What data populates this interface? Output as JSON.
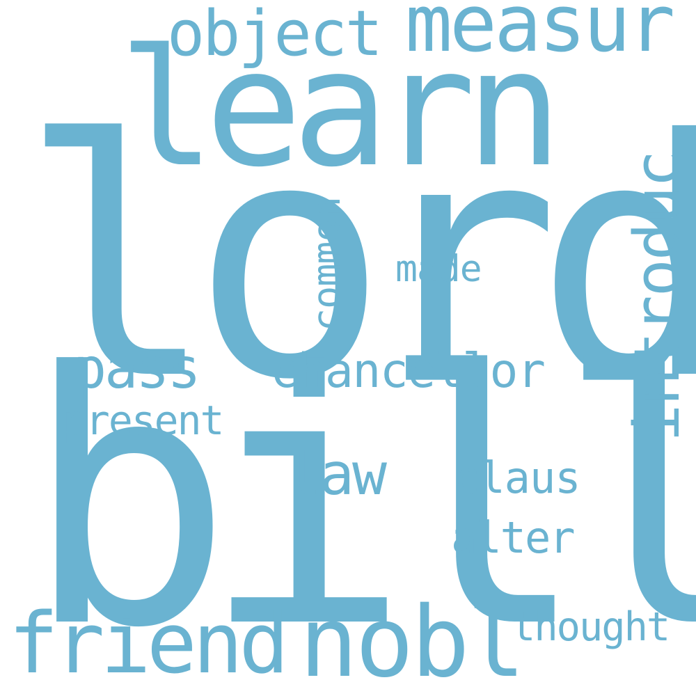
{
  "word_cloud": {
    "color": "#6ab3d1",
    "background": "#ffffff",
    "words": {
      "lord": "lord",
      "bill": "bill",
      "learn": "learn",
      "measur": "measur",
      "object": "object",
      "friend": "friend",
      "nobl": "nobl",
      "introduc": "introduc",
      "pass": "pass",
      "chancellor": "chancellor",
      "common": "common",
      "made": "made",
      "present": "present",
      "law": "law",
      "claus": "claus",
      "alter": "alter",
      "thought": "thought"
    }
  }
}
